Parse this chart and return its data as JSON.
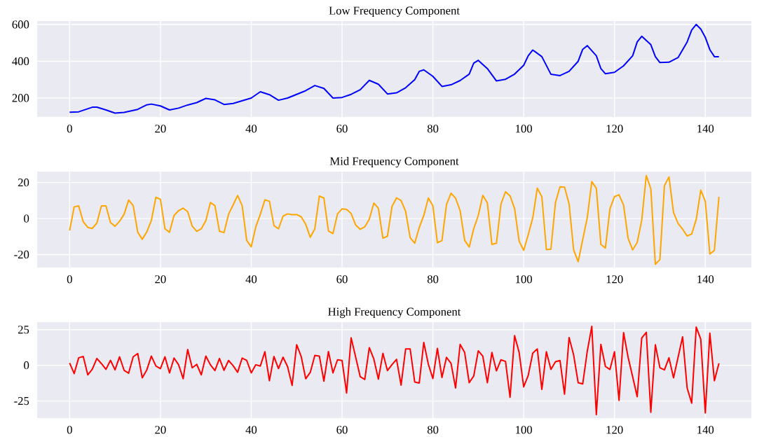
{
  "chart_data": [
    {
      "type": "line",
      "title": "Low Frequency Component",
      "xlim": [
        -7.15,
        150.15
      ],
      "ylim": [
        97,
        619
      ],
      "xticks": [
        0,
        20,
        40,
        60,
        80,
        100,
        120,
        140
      ],
      "yticks": [
        200,
        400,
        600
      ],
      "grid": true,
      "series": [
        {
          "color": "#0000ff",
          "x": [
            0,
            2,
            5,
            6,
            8,
            10,
            12,
            15,
            17,
            18,
            20,
            22,
            24,
            26,
            28,
            30,
            32,
            34,
            36,
            38,
            40,
            42,
            44,
            46,
            48,
            50,
            52,
            54,
            56,
            58,
            60,
            62,
            64,
            66,
            68,
            70,
            72,
            74,
            76,
            77,
            78,
            80,
            82,
            84,
            86,
            88,
            89,
            90,
            92,
            94,
            96,
            98,
            100,
            101,
            102,
            104,
            106,
            108,
            110,
            112,
            113,
            114,
            116,
            117,
            118,
            120,
            122,
            124,
            125,
            126,
            128,
            129,
            130,
            132,
            134,
            136,
            137,
            138,
            139,
            140,
            141,
            142,
            143
          ],
          "values": [
            123,
            125,
            150,
            150,
            135,
            118,
            122,
            138,
            163,
            167,
            157,
            135,
            145,
            162,
            175,
            198,
            190,
            165,
            170,
            185,
            200,
            234,
            218,
            188,
            200,
            220,
            240,
            268,
            252,
            200,
            203,
            220,
            245,
            296,
            275,
            222,
            228,
            256,
            300,
            345,
            353,
            318,
            263,
            272,
            295,
            330,
            390,
            405,
            360,
            293,
            302,
            330,
            378,
            430,
            461,
            425,
            329,
            322,
            345,
            400,
            465,
            485,
            430,
            360,
            332,
            340,
            375,
            430,
            505,
            536,
            490,
            425,
            393,
            395,
            420,
            505,
            570,
            600,
            575,
            530,
            463,
            425,
            425
          ]
        }
      ]
    },
    {
      "type": "line",
      "title": "Mid Frequency Component",
      "xlim": [
        -7.15,
        150.15
      ],
      "ylim": [
        -27.2,
        26.1
      ],
      "xticks": [
        0,
        20,
        40,
        60,
        80,
        100,
        120,
        140
      ],
      "yticks": [
        -20,
        0,
        20
      ],
      "grid": true,
      "series": [
        {
          "color": "#ffa500",
          "x": [
            0,
            1,
            2,
            3,
            4,
            5,
            6,
            7,
            8,
            9,
            10,
            11,
            12,
            13,
            14,
            15,
            16,
            17,
            18,
            19,
            20,
            21,
            22,
            23,
            24,
            25,
            26,
            27,
            28,
            29,
            30,
            31,
            32,
            33,
            34,
            35,
            36,
            37,
            38,
            39,
            40,
            41,
            42,
            43,
            44,
            45,
            46,
            47,
            48,
            49,
            50,
            51,
            52,
            53,
            54,
            55,
            56,
            57,
            58,
            59,
            60,
            61,
            62,
            63,
            64,
            65,
            66,
            67,
            68,
            69,
            70,
            71,
            72,
            73,
            74,
            75,
            76,
            77,
            78,
            79,
            80,
            81,
            82,
            83,
            84,
            85,
            86,
            87,
            88,
            89,
            90,
            91,
            92,
            93,
            94,
            95,
            96,
            97,
            98,
            99,
            100,
            101,
            102,
            103,
            104,
            105,
            106,
            107,
            108,
            109,
            110,
            111,
            112,
            113,
            114,
            115,
            116,
            117,
            118,
            119,
            120,
            121,
            122,
            123,
            124,
            125,
            126,
            127,
            128,
            129,
            130,
            131,
            132,
            133,
            134,
            135,
            136,
            137,
            138,
            139,
            140,
            141,
            142,
            143
          ],
          "values": [
            -6.7,
            6.5,
            7,
            -1.8,
            -4.9,
            -5.5,
            -2.5,
            7,
            7,
            -2.2,
            -4.3,
            -1.5,
            2.4,
            10.3,
            7.2,
            -7.6,
            -11.5,
            -7.4,
            -1.1,
            11.8,
            10.7,
            -5.7,
            -7.6,
            1.7,
            4.4,
            5.8,
            3.8,
            -4.2,
            -7.1,
            -5.7,
            -1.1,
            8.9,
            7.2,
            -7.1,
            -7.8,
            2.4,
            7.5,
            12.8,
            7.2,
            -12.2,
            -15.7,
            -4.6,
            2.4,
            10.4,
            9.6,
            -3.9,
            -5.7,
            1.3,
            2.6,
            2.2,
            2.2,
            1,
            -3.2,
            -10.4,
            -5.7,
            12.5,
            11.4,
            -6.9,
            -8.3,
            2.6,
            5.4,
            5.1,
            2.8,
            -3.6,
            -6,
            -4.6,
            -0.4,
            8.6,
            5.7,
            -10.9,
            -9.8,
            6.7,
            11.5,
            10,
            4,
            -10.6,
            -13.7,
            -5,
            1.7,
            11.4,
            7.1,
            -13.4,
            -12.3,
            7.8,
            14.1,
            11.3,
            4.4,
            -12.1,
            -15.8,
            -5.6,
            1.7,
            12.9,
            8.7,
            -14.4,
            -13.7,
            8.1,
            14.9,
            12.6,
            5.5,
            -12.6,
            -17.7,
            -9,
            0.4,
            16.9,
            12.1,
            -17.3,
            -17,
            8.9,
            17.6,
            17.4,
            8.1,
            -17.4,
            -24,
            -11.7,
            0.4,
            20.5,
            16.8,
            -14.4,
            -16.4,
            5.4,
            12.2,
            13.2,
            7.5,
            -11,
            -17.4,
            -13.3,
            -0.9,
            23.9,
            16.5,
            -25.4,
            -22.8,
            18.3,
            23.1,
            3.4,
            -2.7,
            -5.9,
            -9.7,
            -8.6,
            -0.5,
            15.8,
            9.5,
            -19.7,
            -17.7,
            12.1
          ]
        }
      ]
    },
    {
      "type": "line",
      "title": "High Frequency Component",
      "xlim": [
        -7.15,
        150.15
      ],
      "ylim": [
        -37,
        30.3
      ],
      "xticks": [
        0,
        20,
        40,
        60,
        80,
        100,
        120,
        140
      ],
      "yticks": [
        -25,
        0,
        25
      ],
      "grid": true,
      "series": [
        {
          "color": "#ff0000",
          "x": [
            0,
            1,
            2,
            3,
            4,
            5,
            6,
            7,
            8,
            9,
            10,
            11,
            12,
            13,
            14,
            15,
            16,
            17,
            18,
            19,
            20,
            21,
            22,
            23,
            24,
            25,
            26,
            27,
            28,
            29,
            30,
            31,
            32,
            33,
            34,
            35,
            36,
            37,
            38,
            39,
            40,
            41,
            42,
            43,
            44,
            45,
            46,
            47,
            48,
            49,
            50,
            51,
            52,
            53,
            54,
            55,
            56,
            57,
            58,
            59,
            60,
            61,
            62,
            63,
            64,
            65,
            66,
            67,
            68,
            69,
            70,
            71,
            72,
            73,
            74,
            75,
            76,
            77,
            78,
            79,
            80,
            81,
            82,
            83,
            84,
            85,
            86,
            87,
            88,
            89,
            90,
            91,
            92,
            93,
            94,
            95,
            96,
            97,
            98,
            99,
            100,
            101,
            102,
            103,
            104,
            105,
            106,
            107,
            108,
            109,
            110,
            111,
            112,
            113,
            114,
            115,
            116,
            117,
            118,
            119,
            120,
            121,
            122,
            123,
            124,
            125,
            126,
            127,
            128,
            129,
            130,
            131,
            132,
            133,
            134,
            135,
            136,
            137,
            138,
            139,
            140,
            141,
            142,
            143
          ],
          "values": [
            1.6,
            -5.8,
            5.3,
            6.2,
            -6.7,
            -2.7,
            4.8,
            1.2,
            -2.8,
            3.5,
            -3.2,
            6,
            -3.5,
            -5.5,
            6,
            8.3,
            -8.8,
            -3.2,
            6.5,
            -0.5,
            -2.3,
            6,
            -5.3,
            5.1,
            0.4,
            -9.4,
            11.1,
            -1.8,
            0.7,
            -6.7,
            6.5,
            0.4,
            -3.7,
            4.8,
            -3.5,
            3.4,
            -0.2,
            -4.9,
            5.1,
            3.4,
            -5.3,
            0.4,
            -0.5,
            9.5,
            -10.8,
            6.2,
            -2.3,
            5.7,
            -0.9,
            -14.1,
            14.5,
            6.2,
            -9.4,
            -4.9,
            6.9,
            6.5,
            -11.1,
            9.7,
            -5.3,
            3.9,
            3.4,
            -19.4,
            19.3,
            5.7,
            -8,
            -9.9,
            12.4,
            4.4,
            -9.7,
            8.4,
            -3.7,
            0.5,
            4.2,
            -13.9,
            11.5,
            11.5,
            -11.7,
            -12.4,
            16.1,
            0.8,
            -9.3,
            11.9,
            -8.5,
            5.6,
            1.4,
            -15.9,
            14.7,
            9,
            -12.2,
            -7.5,
            10.2,
            6.4,
            -12.2,
            9,
            -3.9,
            3.9,
            2.7,
            -22.4,
            20.8,
            9,
            -15.1,
            -7.1,
            8.6,
            11.5,
            -16.9,
            9.5,
            -2.9,
            2.5,
            3.4,
            -20.2,
            19.5,
            7.3,
            -12.2,
            -13.1,
            9.8,
            27.3,
            -34.6,
            14.7,
            -0.8,
            -2.9,
            9.5,
            -24.6,
            22.9,
            5.6,
            -8,
            -22,
            19.2,
            23.1,
            -32.9,
            14.4,
            -1.7,
            -3.2,
            5.3,
            -8.8,
            5.6,
            20,
            -15.9,
            -26.6,
            26.8,
            18.3,
            -33.4,
            22.5,
            -10.8,
            1.4
          ]
        }
      ]
    }
  ]
}
